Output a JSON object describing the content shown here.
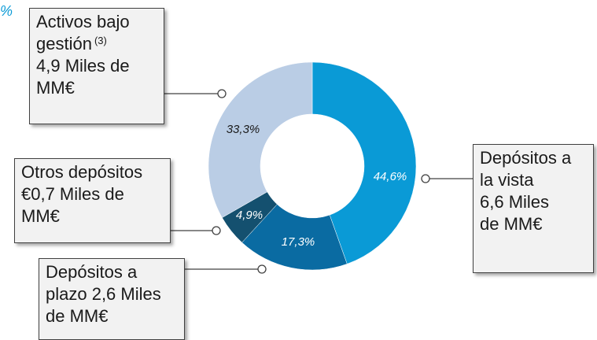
{
  "corner_mark": "%",
  "chart_data": {
    "type": "pie",
    "donut": true,
    "title": "",
    "slices": [
      {
        "key": "demand",
        "value": 44.6,
        "percent_label": "44,6%",
        "color": "#0a9ad6",
        "label_color": "#ffffff"
      },
      {
        "key": "term",
        "value": 17.3,
        "percent_label": "17,3%",
        "color": "#0a6ba2",
        "label_color": "#ffffff"
      },
      {
        "key": "other",
        "value": 4.9,
        "percent_label": "4,9%",
        "color": "#14506f",
        "label_color": "#ffffff"
      },
      {
        "key": "aum",
        "value": 33.3,
        "percent_label": "33,3%",
        "color": "#bacde5",
        "label_color": "#1a1a1a"
      }
    ]
  },
  "callouts": {
    "aum": {
      "line1": "Activos bajo",
      "line2": "gestión",
      "footnote": "(3)",
      "line3": "4,9 Miles de",
      "line4": "MM€"
    },
    "demand": {
      "line1": "Depósitos a",
      "line2": "la vista",
      "line3": "6,6 Miles",
      "line4": "de MM€"
    },
    "other": {
      "line1": "Otros depósitos",
      "line2": "€0,7 Miles de",
      "line3": "MM€"
    },
    "term": {
      "line1": "Depósitos a",
      "line2": "plazo 2,6 Miles",
      "line3": "de MM€"
    }
  },
  "colors": {
    "connector": "#404040",
    "callout_fill": "#f2f2f2"
  }
}
